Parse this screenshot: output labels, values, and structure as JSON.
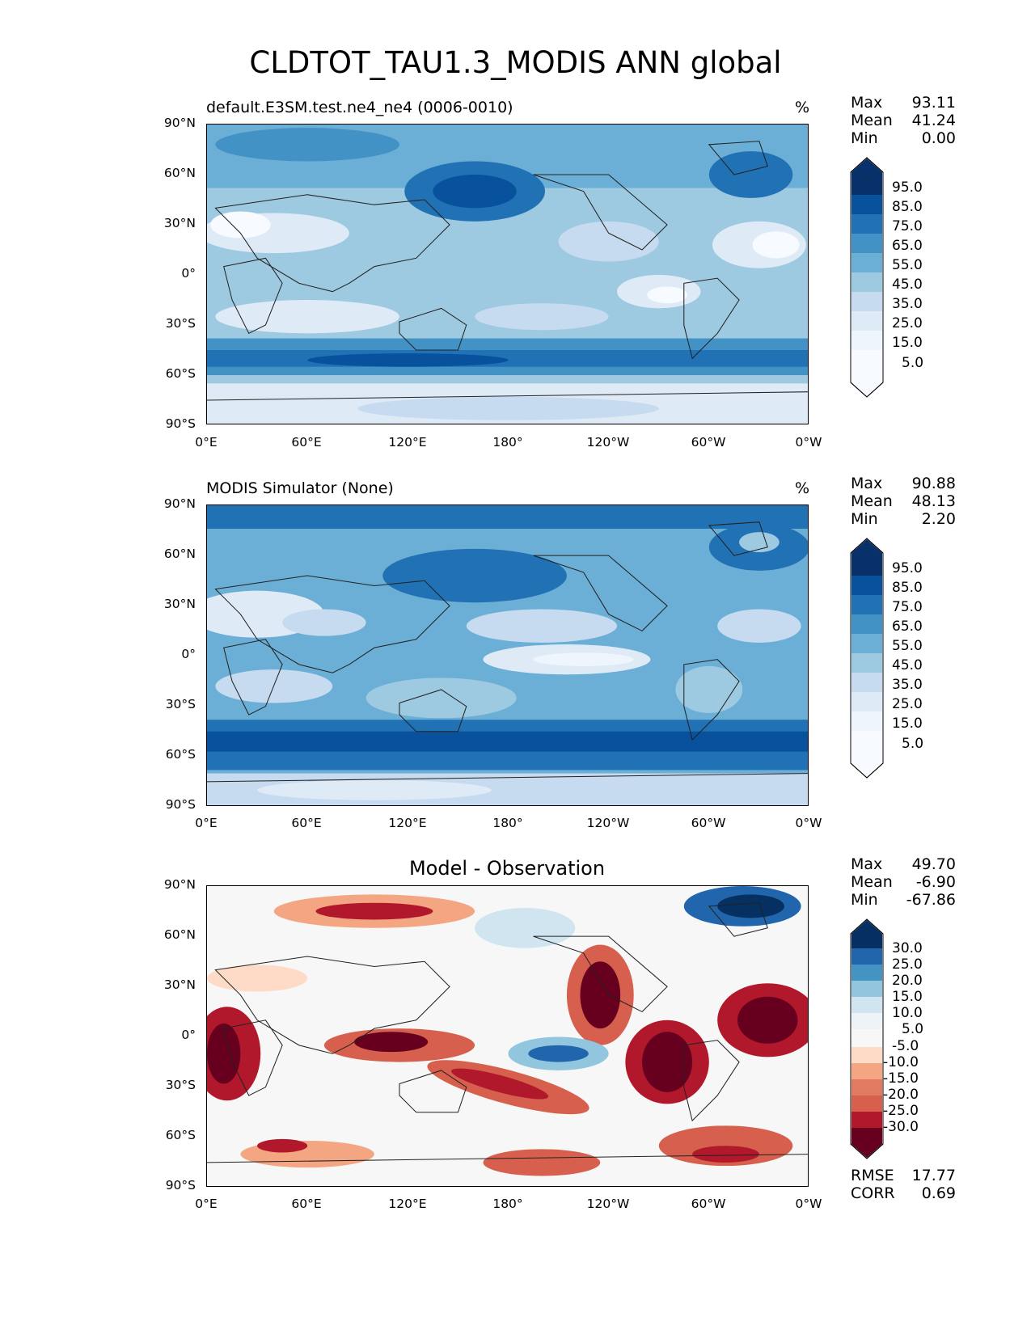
{
  "figure": {
    "title": "CLDTOT_TAU1.3_MODIS ANN global"
  },
  "axes": {
    "y_ticks": [
      "90°N",
      "60°N",
      "30°N",
      "0°",
      "30°S",
      "60°S",
      "90°S"
    ],
    "x_ticks": [
      "0°E",
      "60°E",
      "120°E",
      "180°",
      "120°W",
      "60°W",
      "0°W"
    ]
  },
  "panels": [
    {
      "id": "test",
      "subtitle_left": "default.E3SM.test.ne4_ne4 (0006-0010)",
      "units": "%",
      "stats": {
        "max_label": "Max",
        "max": "93.11",
        "mean_label": "Mean",
        "mean": "41.24",
        "min_label": "Min",
        "min": "0.00"
      },
      "colorbar_labels": [
        "95.0",
        "85.0",
        "75.0",
        "65.0",
        "55.0",
        "45.0",
        "35.0",
        "25.0",
        "15.0",
        "5.0"
      ]
    },
    {
      "id": "reference",
      "subtitle_left": "MODIS Simulator (None)",
      "units": "%",
      "stats": {
        "max_label": "Max",
        "max": "90.88",
        "mean_label": "Mean",
        "mean": "48.13",
        "min_label": "Min",
        "min": "2.20"
      },
      "colorbar_labels": [
        "95.0",
        "85.0",
        "75.0",
        "65.0",
        "55.0",
        "45.0",
        "35.0",
        "25.0",
        "15.0",
        "5.0"
      ]
    },
    {
      "id": "diff",
      "subtitle_center": "Model - Observation",
      "stats": {
        "max_label": "Max",
        "max": "49.70",
        "mean_label": "Mean",
        "mean": "-6.90",
        "min_label": "Min",
        "min": "-67.86"
      },
      "colorbar_labels": [
        "30.0",
        "25.0",
        "20.0",
        "15.0",
        "10.0",
        "5.0",
        "-5.0",
        "-10.0",
        "-15.0",
        "-20.0",
        "-25.0",
        "-30.0"
      ],
      "rmse_label": "RMSE",
      "rmse": "17.77",
      "corr_label": "CORR",
      "corr": "0.69"
    }
  ],
  "colors": {
    "blues": [
      "#f7fbff",
      "#deebf7",
      "#c6dbef",
      "#9ecae1",
      "#6baed6",
      "#4292c6",
      "#2171b5",
      "#08519c",
      "#08306b"
    ],
    "diverging": [
      "#67001f",
      "#b2182b",
      "#d6604d",
      "#f4a582",
      "#fddbc7",
      "#f7f7f7",
      "#d1e5f0",
      "#92c5de",
      "#4393c3",
      "#2166ac",
      "#053061"
    ]
  }
}
